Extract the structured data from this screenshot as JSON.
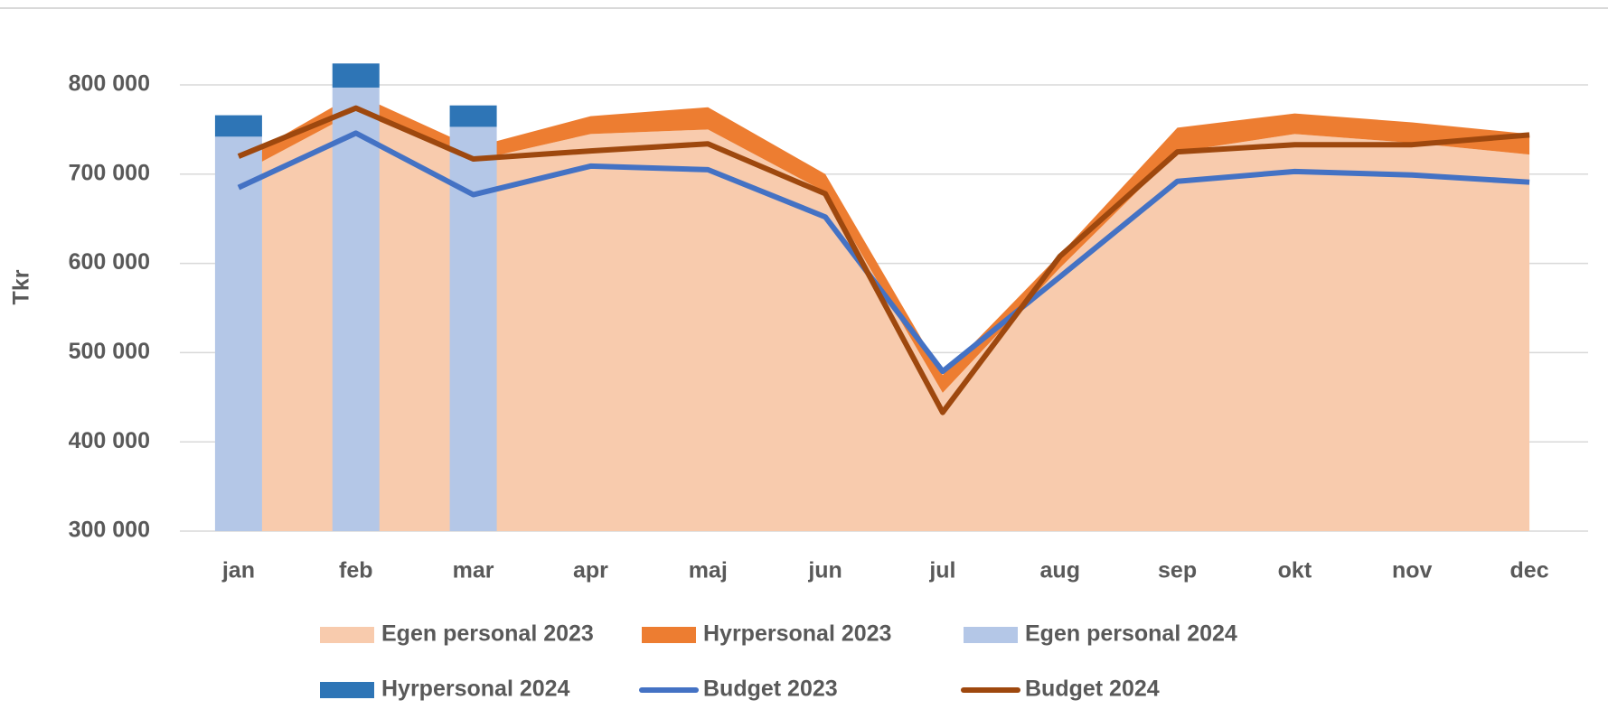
{
  "chart_data": {
    "type": "combo",
    "y_label": "Tkr",
    "categories": [
      "jan",
      "feb",
      "mar",
      "apr",
      "maj",
      "jun",
      "jul",
      "aug",
      "sep",
      "okt",
      "nov",
      "dec"
    ],
    "ylim": [
      300000,
      850000
    ],
    "yticks": [
      {
        "value": 300000,
        "label": "300 000"
      },
      {
        "value": 400000,
        "label": "400 000"
      },
      {
        "value": 500000,
        "label": "500 000"
      },
      {
        "value": 600000,
        "label": "600 000"
      },
      {
        "value": 700000,
        "label": "700 000"
      },
      {
        "value": 800000,
        "label": "800 000"
      }
    ],
    "grid": true,
    "legend": "bottom",
    "series": [
      {
        "name": "Egen personal 2023",
        "kind": "area",
        "color": "#f8cbad",
        "values": [
          700000,
          770000,
          715000,
          745000,
          750000,
          680000,
          455000,
          595000,
          725000,
          745000,
          735000,
          722000
        ]
      },
      {
        "name": "Hyrpersonal 2023",
        "kind": "area",
        "color": "#ed7d31",
        "values": [
          15000,
          20000,
          15000,
          20000,
          25000,
          20000,
          20000,
          15000,
          27000,
          23000,
          23000,
          23000
        ]
      },
      {
        "name": "Egen personal 2024",
        "kind": "bar",
        "color": "#b4c7e7",
        "values": [
          742000,
          797000,
          753000,
          null,
          null,
          null,
          null,
          null,
          null,
          null,
          null,
          null
        ]
      },
      {
        "name": "Hyrpersonal 2024",
        "kind": "bar",
        "color": "#2e75b6",
        "values": [
          24000,
          27000,
          24000,
          null,
          null,
          null,
          null,
          null,
          null,
          null,
          null,
          null
        ]
      },
      {
        "name": "Budget 2023",
        "kind": "line",
        "color": "#4472c4",
        "values": [
          685000,
          746000,
          677000,
          709000,
          705000,
          652000,
          479000,
          585000,
          692000,
          703000,
          699000,
          691000
        ]
      },
      {
        "name": "Budget 2024",
        "kind": "line",
        "color": "#9e480e",
        "values": [
          720000,
          774000,
          717000,
          726000,
          734000,
          678000,
          433000,
          608000,
          725000,
          733000,
          733000,
          744000
        ]
      }
    ]
  }
}
